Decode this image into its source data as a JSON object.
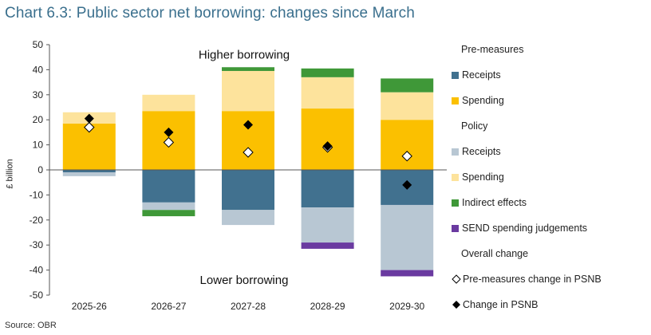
{
  "title": "Chart 6.3: Public sector net borrowing: changes since March",
  "source": "Source: OBR",
  "chart_data": {
    "type": "bar",
    "stacked": true,
    "ylabel": "£ billion",
    "ylim": [
      -50,
      50
    ],
    "yticks": [
      50,
      40,
      30,
      20,
      10,
      0,
      -10,
      -20,
      -30,
      -40,
      -50
    ],
    "categories": [
      "2025-26",
      "2026-27",
      "2027-28",
      "2028-29",
      "2029-30"
    ],
    "annotations": {
      "upper": "Higher borrowing",
      "lower": "Lower borrowing"
    },
    "series": [
      {
        "name": "Receipts",
        "group": "Pre-measures",
        "color": "#41718f",
        "values": [
          -1,
          -13,
          -16,
          -15,
          -14
        ]
      },
      {
        "name": "Spending",
        "group": "Pre-measures",
        "color": "#fbc000",
        "values": [
          18.5,
          23.5,
          23.5,
          24.5,
          20
        ]
      },
      {
        "name": "Receipts",
        "group": "Policy",
        "color": "#b8c7d3",
        "values": [
          -1.5,
          -3,
          -6,
          -14,
          -26
        ]
      },
      {
        "name": "Spending",
        "group": "Policy",
        "color": "#fde39c",
        "values": [
          4.5,
          6.5,
          16,
          12.5,
          11
        ]
      },
      {
        "name": "Indirect effects",
        "group": "Policy",
        "color": "#3f9838",
        "values": [
          0,
          -2.5,
          1.5,
          3.5,
          5.5
        ]
      },
      {
        "name": "SEND spending judgements",
        "group": "Policy",
        "color": "#6a3aa0",
        "values": [
          0,
          0,
          0,
          -2.5,
          -2.5
        ]
      }
    ],
    "markers": [
      {
        "name": "Pre-measures change in PSNB",
        "shape": "diamond-open",
        "values": [
          17,
          11,
          7,
          9,
          5.5
        ]
      },
      {
        "name": "Change in PSNB",
        "shape": "diamond-filled",
        "values": [
          20.5,
          15,
          18,
          9.5,
          -6
        ]
      }
    ]
  },
  "legend": {
    "groups": [
      {
        "heading": "Pre-measures",
        "items": [
          {
            "label": "Receipts",
            "color": "#41718f"
          },
          {
            "label": "Spending",
            "color": "#fbc000"
          }
        ]
      },
      {
        "heading": "Policy",
        "items": [
          {
            "label": "Receipts",
            "color": "#b8c7d3"
          },
          {
            "label": "Spending",
            "color": "#fde39c"
          },
          {
            "label": "Indirect effects",
            "color": "#3f9838"
          },
          {
            "label": "SEND spending judgements",
            "color": "#6a3aa0"
          }
        ]
      },
      {
        "heading": "Overall change",
        "items": [
          {
            "label": "Pre-measures change in PSNB",
            "symbol": "diamond-open"
          },
          {
            "label": "Change in PSNB",
            "symbol": "diamond-filled"
          }
        ]
      }
    ]
  }
}
